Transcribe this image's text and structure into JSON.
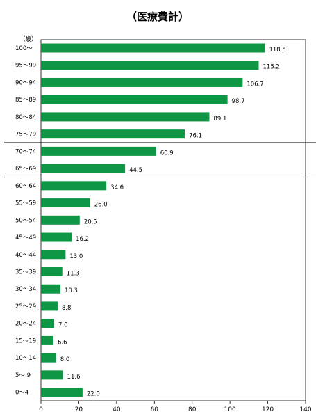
{
  "chart_data": {
    "type": "bar",
    "orientation": "horizontal",
    "title": "（医療費計）",
    "ylabel": "（歳）",
    "xlabel": "",
    "categories": [
      "100～",
      "95～99",
      "90～94",
      "85～89",
      "80～84",
      "75～79",
      "70～74",
      "65～69",
      "60～64",
      "55～59",
      "50～54",
      "45～49",
      "40～44",
      "35～39",
      "30～34",
      "25～29",
      "20～24",
      "15～19",
      "10～14",
      "5～ 9",
      "0～4"
    ],
    "values": [
      118.5,
      115.2,
      106.7,
      98.7,
      89.1,
      76.1,
      60.9,
      44.5,
      34.6,
      26.0,
      20.5,
      16.2,
      13.0,
      11.3,
      10.3,
      8.8,
      7.0,
      6.6,
      8.0,
      11.6,
      22.0
    ],
    "value_labels": [
      "118.5",
      "115.2",
      "106.7",
      "98.7",
      "89.1",
      "76.1",
      "60.9",
      "44.5",
      "34.6",
      "26.0",
      "20.5",
      "16.2",
      "13.0",
      "11.3",
      "10.3",
      "8.8",
      "7.0",
      "6.6",
      "8.0",
      "11.6",
      "22.0"
    ],
    "xlim": [
      0,
      140
    ],
    "xticks": [
      0,
      20,
      40,
      60,
      80,
      100,
      120,
      140
    ],
    "group_separators_after": [
      "75～79",
      "65～69"
    ],
    "grid": false,
    "legend": "none",
    "bar_color": "#0f9645"
  }
}
